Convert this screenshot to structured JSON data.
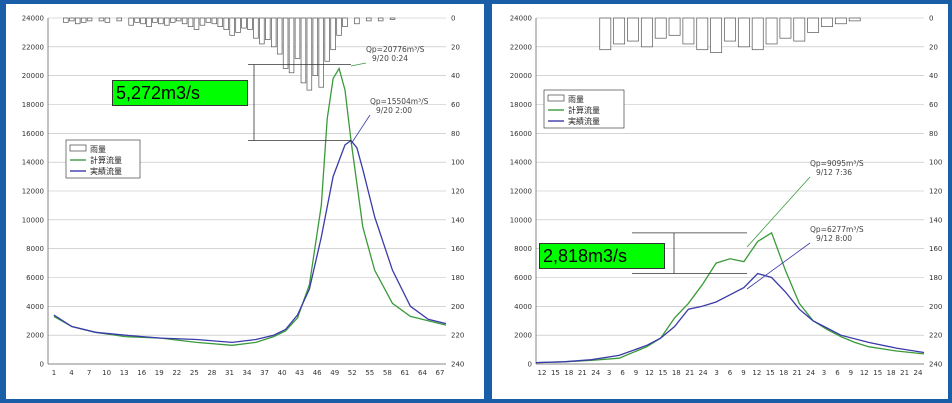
{
  "chart_data": [
    {
      "type": "line",
      "title": "",
      "xlabel": "",
      "ylabel": "",
      "ylim": [
        0,
        24000
      ],
      "y2lim": [
        0,
        240
      ],
      "y2_inverted": true,
      "yticks": [
        "0",
        "2000",
        "4000",
        "6000",
        "8000",
        "10000",
        "12000",
        "14000",
        "16000",
        "18000",
        "20000",
        "22000",
        "24000"
      ],
      "y2ticks": [
        "0",
        "20",
        "40",
        "60",
        "80",
        "100",
        "120",
        "140",
        "160",
        "180",
        "200",
        "220",
        "240"
      ],
      "xticks": [
        "1",
        "4",
        "7",
        "10",
        "13",
        "16",
        "19",
        "22",
        "25",
        "28",
        "31",
        "34",
        "37",
        "40",
        "43",
        "46",
        "49",
        "52",
        "55",
        "58",
        "61",
        "64",
        "67"
      ],
      "legend": [
        "雨量",
        "計算流量",
        "実績流量"
      ],
      "legend_position": "center-left",
      "series": [
        {
          "name": "計算流量",
          "color": "#3a9a3a",
          "x": [
            1,
            4,
            8,
            13,
            19,
            25,
            31,
            35,
            38,
            40,
            42,
            44,
            46,
            47,
            48,
            49,
            50,
            51,
            53,
            55,
            58,
            61,
            64,
            67
          ],
          "values": [
            3300,
            2600,
            2200,
            1900,
            1800,
            1500,
            1300,
            1500,
            1900,
            2300,
            3200,
            5500,
            11000,
            17000,
            19800,
            20500,
            19000,
            15500,
            9500,
            6500,
            4200,
            3300,
            3000,
            2700
          ]
        },
        {
          "name": "実績流量",
          "color": "#3a3aaa",
          "x": [
            1,
            4,
            8,
            13,
            19,
            25,
            31,
            35,
            38,
            40,
            42,
            44,
            46,
            48,
            50,
            51,
            52,
            53,
            55,
            58,
            61,
            64,
            67
          ],
          "values": [
            3400,
            2600,
            2200,
            2000,
            1800,
            1700,
            1500,
            1700,
            2000,
            2400,
            3400,
            5200,
            8800,
            13000,
            15200,
            15500,
            15000,
            13500,
            10200,
            6500,
            4000,
            3100,
            2800
          ]
        }
      ],
      "rain": {
        "name": "雨量",
        "x": [
          3,
          4,
          5,
          6,
          7,
          9,
          10,
          12,
          14,
          15,
          16,
          17,
          18,
          19,
          20,
          21,
          22,
          23,
          24,
          25,
          26,
          27,
          28,
          29,
          30,
          31,
          32,
          33,
          34,
          35,
          36,
          37,
          38,
          39,
          40,
          41,
          42,
          43,
          44,
          45,
          46,
          47,
          48,
          49,
          50,
          52,
          54,
          56,
          58
        ],
        "values": [
          3,
          2,
          4,
          3,
          2,
          2,
          3,
          2,
          5,
          3,
          4,
          6,
          3,
          4,
          5,
          3,
          2,
          4,
          6,
          8,
          5,
          3,
          4,
          6,
          8,
          12,
          10,
          7,
          8,
          14,
          18,
          15,
          20,
          25,
          35,
          38,
          28,
          45,
          50,
          40,
          48,
          30,
          22,
          12,
          6,
          4,
          2,
          2,
          1
        ]
      },
      "annotations": [
        {
          "text": "Qp=20776m³/S",
          "time": "9/20  0:24"
        },
        {
          "text": "Qp=15504m³/S",
          "time": "9/20  2:00"
        }
      ],
      "callout": "5,272m3/s",
      "grid": true
    },
    {
      "type": "line",
      "title": "",
      "xlabel": "",
      "ylabel": "",
      "ylim": [
        0,
        24000
      ],
      "y2lim": [
        0,
        240
      ],
      "y2_inverted": true,
      "yticks": [
        "0",
        "2000",
        "4000",
        "6000",
        "8000",
        "10000",
        "12000",
        "14000",
        "16000",
        "18000",
        "20000",
        "22000",
        "24000"
      ],
      "y2ticks": [
        "0",
        "20",
        "40",
        "60",
        "80",
        "100",
        "120",
        "140",
        "160",
        "180",
        "200",
        "220",
        "240"
      ],
      "xticks": [
        "12",
        "15",
        "18",
        "21",
        "24",
        "3",
        "6",
        "9",
        "12",
        "15",
        "18",
        "21",
        "24",
        "3",
        "6",
        "9",
        "12",
        "15",
        "18",
        "21",
        "24",
        "3",
        "6",
        "9",
        "12",
        "15",
        "18",
        "21",
        "24"
      ],
      "legend": [
        "雨量",
        "計算流量",
        "実績流量"
      ],
      "legend_position": "upper-left",
      "series": [
        {
          "name": "計算流量",
          "color": "#3a9a3a",
          "x": [
            0,
            2,
            4,
            6,
            8,
            9,
            10,
            11,
            12,
            13,
            14,
            15,
            16,
            17,
            18,
            19,
            20,
            21,
            22,
            23,
            24,
            26,
            28
          ],
          "values": [
            100,
            150,
            250,
            400,
            1200,
            1800,
            3200,
            4200,
            5500,
            7000,
            7300,
            7100,
            8500,
            9100,
            6500,
            4200,
            3000,
            2400,
            1900,
            1500,
            1200,
            900,
            700
          ]
        },
        {
          "name": "実績流量",
          "color": "#3a3aaa",
          "x": [
            0,
            2,
            4,
            6,
            8,
            9,
            10,
            11,
            12,
            13,
            14,
            15,
            16,
            17,
            18,
            19,
            20,
            21,
            22,
            24,
            26,
            28
          ],
          "values": [
            100,
            150,
            300,
            600,
            1300,
            1800,
            2600,
            3800,
            4000,
            4300,
            4800,
            5300,
            6277,
            6000,
            5000,
            3800,
            3000,
            2500,
            2000,
            1500,
            1100,
            800
          ]
        }
      ],
      "rain": {
        "name": "雨量",
        "x": [
          5,
          6,
          7,
          8,
          9,
          10,
          11,
          12,
          13,
          14,
          15,
          16,
          17,
          18,
          19,
          20,
          21,
          22,
          23
        ],
        "values": [
          22,
          18,
          16,
          20,
          14,
          12,
          18,
          22,
          24,
          16,
          20,
          22,
          18,
          14,
          16,
          10,
          6,
          4,
          2
        ]
      },
      "annotations": [
        {
          "text": "Qp=9095m³/S",
          "time": "9/12  7:36"
        },
        {
          "text": "Qp=6277m³/S",
          "time": "9/12  8:00"
        }
      ],
      "callout": "2,818m3/s",
      "grid": true
    }
  ]
}
